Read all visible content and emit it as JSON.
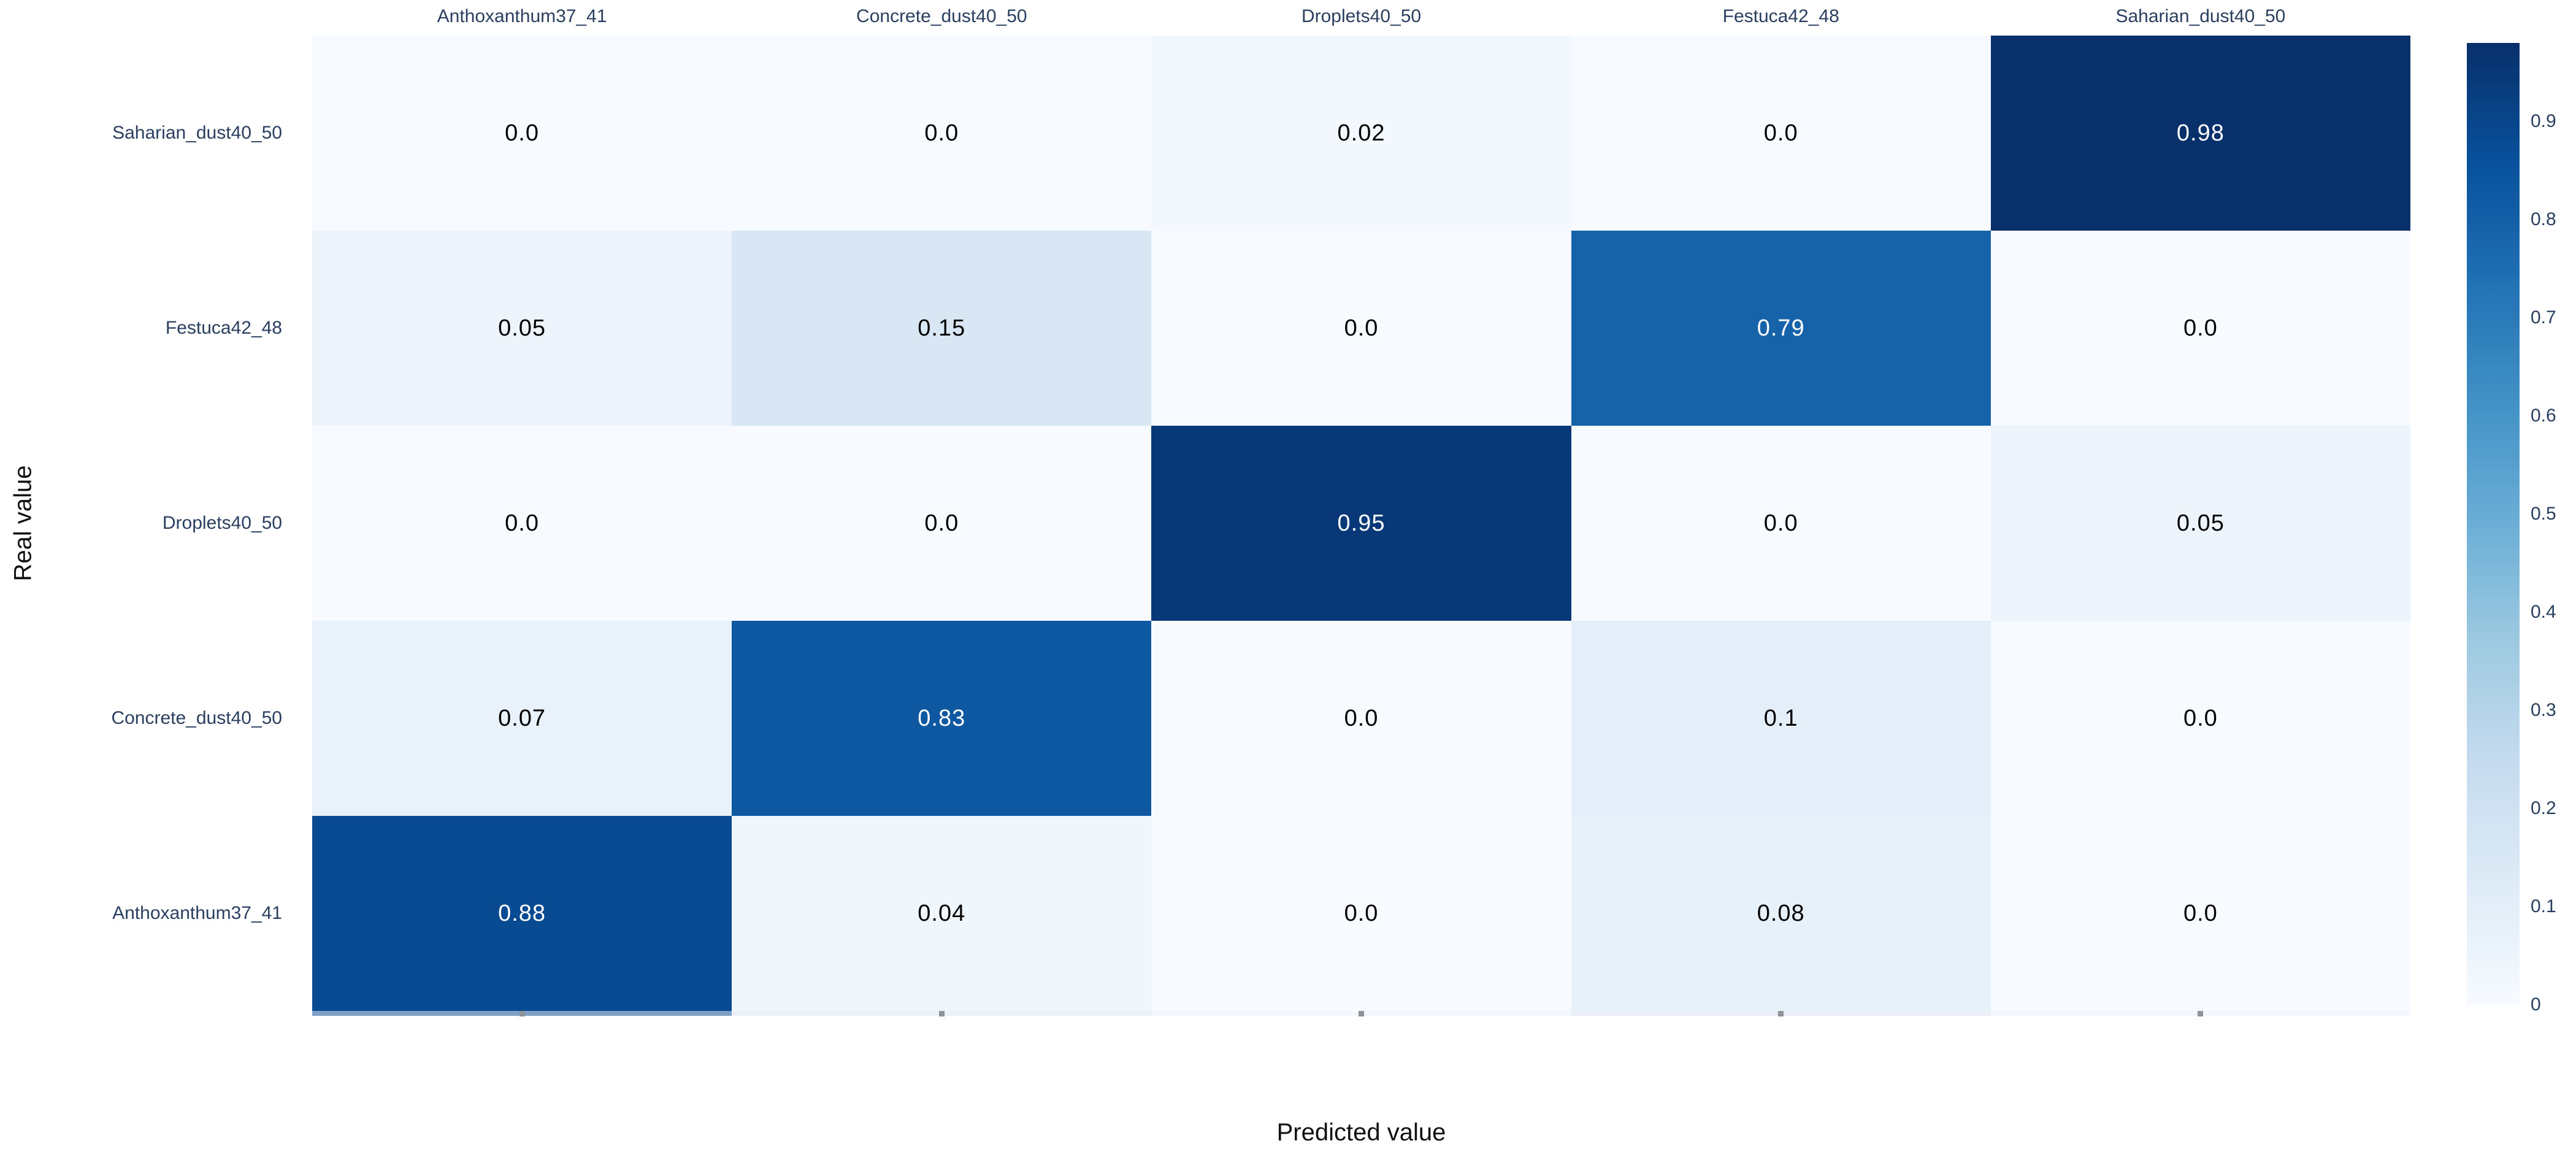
{
  "chart_data": {
    "type": "heatmap",
    "title": "",
    "xlabel": "Predicted value",
    "ylabel": "Real value",
    "x_categories": [
      "Anthoxanthum37_41",
      "Concrete_dust40_50",
      "Droplets40_50",
      "Festuca42_48",
      "Saharian_dust40_50"
    ],
    "y_categories": [
      "Saharian_dust40_50",
      "Festuca42_48",
      "Droplets40_50",
      "Concrete_dust40_50",
      "Anthoxanthum37_41"
    ],
    "matrix": [
      [
        0.0,
        0.0,
        0.02,
        0.0,
        0.98
      ],
      [
        0.05,
        0.15,
        0.0,
        0.79,
        0.0
      ],
      [
        0.0,
        0.0,
        0.95,
        0.0,
        0.05
      ],
      [
        0.07,
        0.83,
        0.0,
        0.1,
        0.0
      ],
      [
        0.88,
        0.04,
        0.0,
        0.08,
        0.0
      ]
    ],
    "cell_labels": [
      [
        "0.0",
        "0.0",
        "0.02",
        "0.0",
        "0.98"
      ],
      [
        "0.05",
        "0.15",
        "0.0",
        "0.79",
        "0.0"
      ],
      [
        "0.0",
        "0.0",
        "0.95",
        "0.0",
        "0.05"
      ],
      [
        "0.07",
        "0.83",
        "0.0",
        "0.1",
        "0.0"
      ],
      [
        "0.88",
        "0.04",
        "0.0",
        "0.08",
        "0.0"
      ]
    ],
    "zmin": 0,
    "zmax": 0.98,
    "colorbar_tick_labels": [
      "0.9",
      "0.8",
      "0.7",
      "0.6",
      "0.5",
      "0.4",
      "0.3",
      "0.2",
      "0.1",
      "0"
    ],
    "colorbar_tick_values": [
      0.9,
      0.8,
      0.7,
      0.6,
      0.5,
      0.4,
      0.3,
      0.2,
      0.1,
      0
    ],
    "colorscale_name": "Blues",
    "colorscale_stops": [
      [
        0.0,
        "#f7fbff"
      ],
      [
        0.125,
        "#deebf7"
      ],
      [
        0.25,
        "#c6dbef"
      ],
      [
        0.375,
        "#9ecae1"
      ],
      [
        0.5,
        "#6baed6"
      ],
      [
        0.625,
        "#4292c6"
      ],
      [
        0.75,
        "#2171b5"
      ],
      [
        0.875,
        "#08519c"
      ],
      [
        1.0,
        "#08306b"
      ]
    ],
    "grid": false,
    "legend_position": "right-colorbar",
    "clipped_bottom_row": {
      "visible": true,
      "strip_colors": [
        "#7f9fc6",
        "#edf1f8",
        "#f3f6fb",
        "#e9eef7",
        "#f3f6fb"
      ],
      "mark_color": "#8e9299"
    }
  },
  "colors": {
    "background": "#ffffff",
    "tick_label": "#2a3f5f",
    "axis_title": "#111111",
    "cell_text_on_light": "#000000",
    "cell_text_on_dark": "#ffffff"
  }
}
